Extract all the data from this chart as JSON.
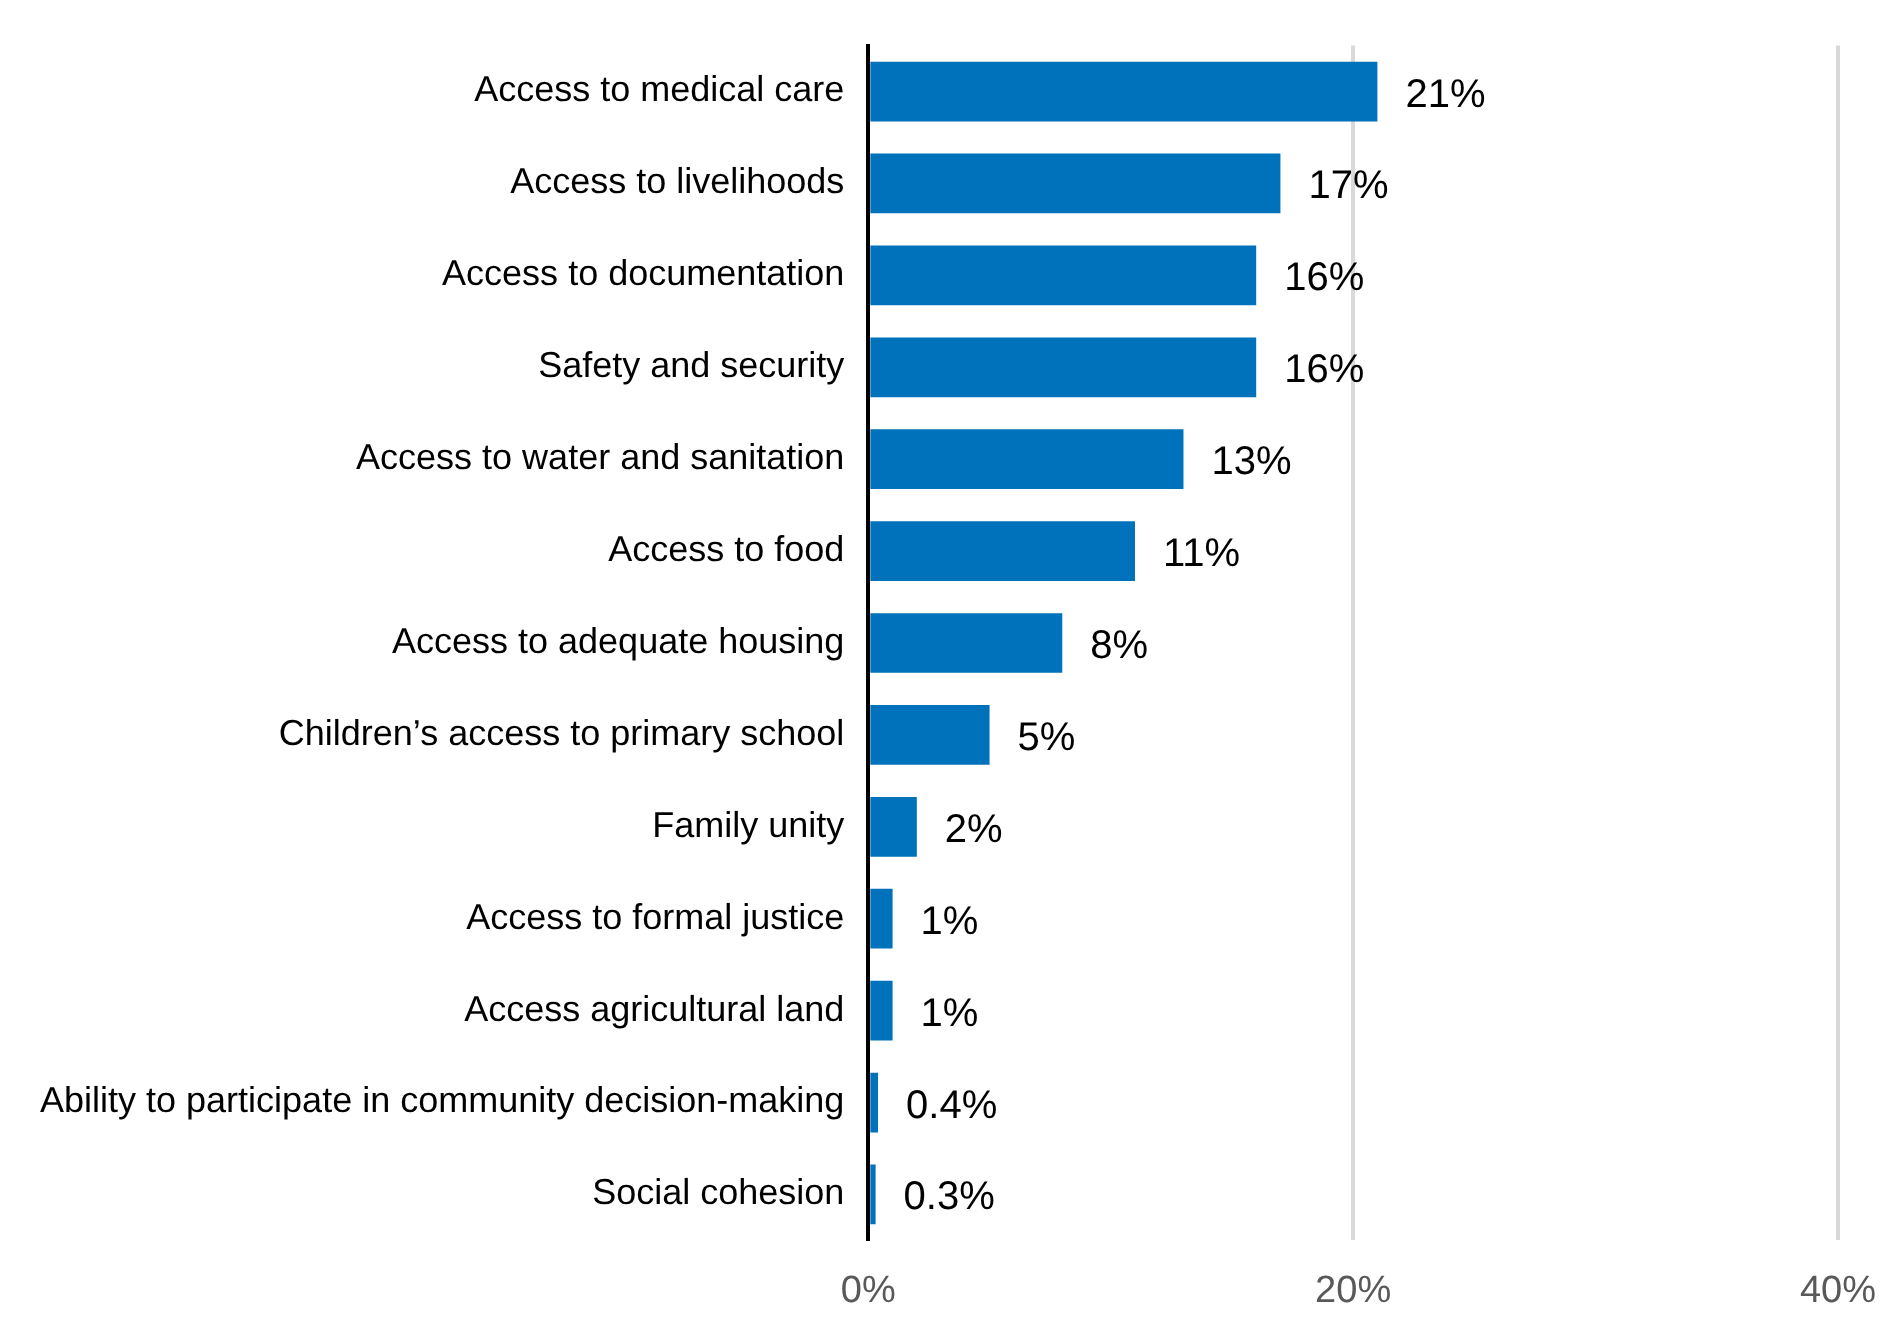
{
  "chart_data": {
    "type": "bar",
    "orientation": "horizontal",
    "categories": [
      "Access to medical care",
      "Access to livelihoods",
      "Access to documentation",
      "Safety and security",
      "Access to water and sanitation",
      "Access to food",
      "Access to adequate housing",
      "Children’s access to primary school",
      "Family unity",
      "Access to formal justice",
      "Access agricultural land",
      "Ability to participate in community decision-making",
      "Social cohesion"
    ],
    "values": [
      21,
      17,
      16,
      16,
      13,
      11,
      8,
      5,
      2,
      1,
      1,
      0.4,
      0.3
    ],
    "value_labels": [
      "21%",
      "17%",
      "16%",
      "16%",
      "13%",
      "11%",
      "8%",
      "5%",
      "2%",
      "1%",
      "1%",
      "0.4%",
      "0.3%"
    ],
    "color": "#0072bc",
    "xlim": [
      0,
      40
    ],
    "xticks": [
      {
        "value": 0,
        "label": "0%"
      },
      {
        "value": 20,
        "label": "20%"
      },
      {
        "value": 40,
        "label": "40%"
      }
    ],
    "grid": "x"
  }
}
